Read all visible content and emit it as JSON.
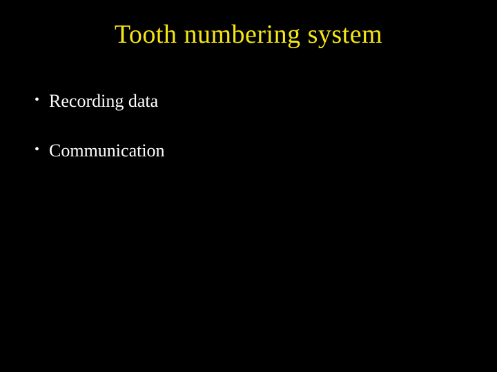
{
  "slide": {
    "background_color": "#000000",
    "title": {
      "text": "Tooth numbering system",
      "color": "#f5e614",
      "fontsize": 38,
      "font_family": "Georgia, serif"
    },
    "bullets": [
      {
        "text": "Recording data",
        "color": "#ffffff",
        "fontsize": 26
      },
      {
        "text": "Communication",
        "color": "#ffffff",
        "fontsize": 26
      }
    ],
    "bullet_marker": "•",
    "bullet_color": "#ffffff"
  }
}
